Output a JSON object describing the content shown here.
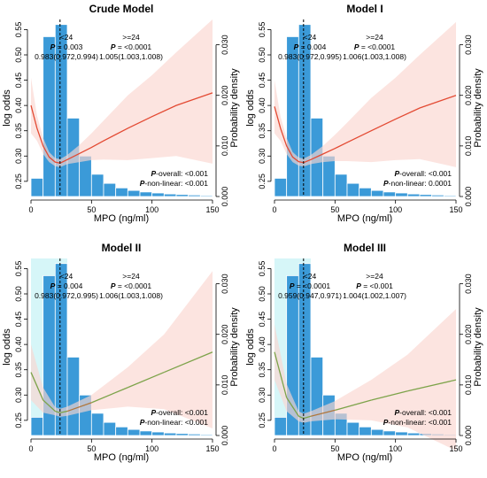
{
  "chart_data": [
    {
      "type": "bar",
      "title": "Crude Model",
      "xlabel": "MPO (ng/ml)",
      "ylabel": "log odds",
      "y2label": "Probability density",
      "xlim": [
        0,
        150
      ],
      "ylim": [
        0.22,
        0.57
      ],
      "y2lim": [
        0,
        0.035
      ],
      "xticks": [
        "0",
        "50",
        "100",
        "150"
      ],
      "yticks": [
        "0.25",
        "0.30",
        "0.35",
        "0.40",
        "0.45",
        "0.50",
        "0.55"
      ],
      "y2ticks": [
        "0.000",
        "0.010",
        "0.020",
        "0.030"
      ],
      "cutoff": 24,
      "shaded_band": false,
      "bins": [
        0,
        10,
        20,
        30,
        40,
        50,
        60,
        70,
        80,
        90,
        100,
        110,
        120,
        130,
        140,
        150
      ],
      "density": [
        0.0036,
        0.0316,
        0.034,
        0.0155,
        0.008,
        0.0044,
        0.0026,
        0.0017,
        0.0012,
        0.0009,
        0.0007,
        0.0005,
        0.0004,
        0.0003,
        0.0002
      ],
      "curve": {
        "x": [
          0,
          5,
          10,
          15,
          20,
          24,
          30,
          40,
          50,
          60,
          80,
          100,
          120,
          150
        ],
        "y": [
          0.4,
          0.355,
          0.32,
          0.298,
          0.288,
          0.286,
          0.293,
          0.305,
          0.317,
          0.33,
          0.355,
          0.378,
          0.4,
          0.425
        ],
        "colors": [
          "#e34a33"
        ]
      },
      "ci_upper": [
        0.455,
        0.38,
        0.336,
        0.308,
        0.296,
        0.294,
        0.302,
        0.322,
        0.345,
        0.37,
        0.42,
        0.46,
        0.505,
        0.57
      ],
      "ci_lower": [
        0.345,
        0.33,
        0.304,
        0.288,
        0.28,
        0.278,
        0.284,
        0.288,
        0.292,
        0.293,
        0.292,
        0.296,
        0.3,
        0.285
      ],
      "annot_left": {
        "group": "<24",
        "p_label": "P",
        "p_text": " = 0.003",
        "or": "0.983(0.972,0.994)"
      },
      "annot_right": {
        "group": ">=24",
        "p_label": "P",
        "p_text": " = <0.0001",
        "or": "1.005(1.003,1.008)"
      },
      "p_overall": {
        "label": "P",
        "text": "-overall: <0.001"
      },
      "p_nonlinear": {
        "label": "P",
        "text": "-non-linear: <0.001"
      }
    },
    {
      "type": "bar",
      "title": "Model I",
      "xlabel": "MPO (ng/ml)",
      "ylabel": "log odds",
      "y2label": "Probability density",
      "xlim": [
        0,
        150
      ],
      "ylim": [
        0.22,
        0.57
      ],
      "y2lim": [
        0,
        0.035
      ],
      "xticks": [
        "0",
        "50",
        "100",
        "150"
      ],
      "yticks": [
        "0.25",
        "0.30",
        "0.35",
        "0.40",
        "0.45",
        "0.50",
        "0.55"
      ],
      "y2ticks": [
        "0.000",
        "0.010",
        "0.020",
        "0.030"
      ],
      "cutoff": 24,
      "shaded_band": false,
      "bins": [
        0,
        10,
        20,
        30,
        40,
        50,
        60,
        70,
        80,
        90,
        100,
        110,
        120,
        130,
        140,
        150
      ],
      "density": [
        0.0036,
        0.0316,
        0.034,
        0.0155,
        0.008,
        0.0044,
        0.0026,
        0.0017,
        0.0012,
        0.0009,
        0.0007,
        0.0005,
        0.0004,
        0.0003,
        0.0002
      ],
      "curve": {
        "x": [
          0,
          5,
          10,
          15,
          20,
          24,
          30,
          40,
          50,
          60,
          80,
          100,
          120,
          150
        ],
        "y": [
          0.398,
          0.355,
          0.32,
          0.298,
          0.289,
          0.287,
          0.293,
          0.304,
          0.315,
          0.327,
          0.35,
          0.373,
          0.395,
          0.42
        ],
        "colors": [
          "#e34a33"
        ]
      },
      "ci_upper": [
        0.45,
        0.378,
        0.336,
        0.308,
        0.297,
        0.295,
        0.302,
        0.32,
        0.342,
        0.366,
        0.415,
        0.455,
        0.5,
        0.565
      ],
      "ci_lower": [
        0.345,
        0.33,
        0.304,
        0.288,
        0.281,
        0.279,
        0.284,
        0.288,
        0.29,
        0.29,
        0.288,
        0.292,
        0.294,
        0.278
      ],
      "annot_left": {
        "group": "<24",
        "p_label": "P",
        "p_text": " = 0.004",
        "or": "0.983(0.972,0.995)"
      },
      "annot_right": {
        "group": ">=24",
        "p_label": "P",
        "p_text": " = <0.0001",
        "or": "1.006(1.003,1.008)"
      },
      "p_overall": {
        "label": "P",
        "text": "-overall: <0.001"
      },
      "p_nonlinear": {
        "label": "P",
        "text": "-non-linear: 0.0001"
      }
    },
    {
      "type": "bar",
      "title": "Model II",
      "xlabel": "MPO (ng/ml)",
      "ylabel": "log odds",
      "y2label": "Probability density",
      "xlim": [
        0,
        150
      ],
      "ylim": [
        0.22,
        0.57
      ],
      "y2lim": [
        0,
        0.035
      ],
      "xticks": [
        "0",
        "50",
        "100",
        "150"
      ],
      "yticks": [
        "0.25",
        "0.30",
        "0.35",
        "0.40",
        "0.45",
        "0.50",
        "0.55"
      ],
      "y2ticks": [
        "0.000",
        "0.010",
        "0.020",
        "0.030"
      ],
      "cutoff": 24,
      "shaded_band": true,
      "bins": [
        0,
        10,
        20,
        30,
        40,
        50,
        60,
        70,
        80,
        90,
        100,
        110,
        120,
        130,
        140,
        150
      ],
      "density": [
        0.0036,
        0.0316,
        0.034,
        0.0155,
        0.008,
        0.0044,
        0.0026,
        0.0017,
        0.0012,
        0.0009,
        0.0007,
        0.0005,
        0.0004,
        0.0003,
        0.0002
      ],
      "curve": {
        "x": [
          0,
          10,
          20,
          24,
          30,
          50,
          80,
          110,
          150
        ],
        "y": [
          0.345,
          0.29,
          0.268,
          0.265,
          0.268,
          0.285,
          0.315,
          0.345,
          0.385
        ],
        "colors": [
          "#e34a33",
          "#7da34a"
        ]
      },
      "ci_upper": [
        0.4,
        0.315,
        0.276,
        0.273,
        0.277,
        0.3,
        0.355,
        0.42,
        0.545
      ],
      "ci_lower": [
        0.29,
        0.265,
        0.26,
        0.257,
        0.259,
        0.27,
        0.277,
        0.272,
        0.234
      ],
      "annot_left": {
        "group": "<24",
        "p_label": "P",
        "p_text": " = 0.004",
        "or": "0.983(0.972,0.995)"
      },
      "annot_right": {
        "group": ">=24",
        "p_label": "P",
        "p_text": " = <0.0001",
        "or": "1.006(1.003,1.008)"
      },
      "p_overall": {
        "label": "P",
        "text": "-overall: <0.001"
      },
      "p_nonlinear": {
        "label": "P",
        "text": "-non-linear: <0.001"
      }
    },
    {
      "type": "bar",
      "title": "Model III",
      "xlabel": "MPO (ng/ml)",
      "ylabel": "log odds",
      "y2label": "Probability density",
      "xlim": [
        0,
        150
      ],
      "ylim": [
        0.22,
        0.57
      ],
      "y2lim": [
        0,
        0.035
      ],
      "xticks": [
        "0",
        "50",
        "100",
        "150"
      ],
      "yticks": [
        "0.25",
        "0.30",
        "0.35",
        "0.40",
        "0.45",
        "0.50",
        "0.55"
      ],
      "y2ticks": [
        "0.000",
        "0.010",
        "0.020",
        "0.030"
      ],
      "cutoff": 24,
      "shaded_band": true,
      "bins": [
        0,
        10,
        20,
        30,
        40,
        50,
        60,
        70,
        80,
        90,
        100,
        110,
        120,
        130,
        140,
        150
      ],
      "density": [
        0.0036,
        0.0316,
        0.034,
        0.0155,
        0.008,
        0.0044,
        0.0026,
        0.0017,
        0.0012,
        0.0009,
        0.0007,
        0.0005,
        0.0004,
        0.0003,
        0.0002
      ],
      "curve": {
        "x": [
          0,
          10,
          20,
          24,
          30,
          50,
          80,
          110,
          150
        ],
        "y": [
          0.385,
          0.295,
          0.258,
          0.254,
          0.258,
          0.27,
          0.29,
          0.308,
          0.33
        ],
        "colors": [
          "#e34a33",
          "#7da34a"
        ]
      },
      "ci_upper": [
        0.44,
        0.322,
        0.268,
        0.263,
        0.268,
        0.288,
        0.33,
        0.38,
        0.47
      ],
      "ci_lower": [
        0.33,
        0.268,
        0.248,
        0.245,
        0.248,
        0.252,
        0.25,
        0.236,
        0.19
      ],
      "annot_left": {
        "group": "<24",
        "p_label": "P",
        "p_text": " = <0.0001",
        "or": "0.959(0.947,0.971)"
      },
      "annot_right": {
        "group": ">=24",
        "p_label": "P",
        "p_text": " = <0.001",
        "or": "1.004(1.002,1.007)"
      },
      "p_overall": {
        "label": "P",
        "text": "-overall: <0.001"
      },
      "p_nonlinear": {
        "label": "P",
        "text": "-non-linear: <0.001"
      }
    }
  ],
  "colors": {
    "bar_fill": "#3b9ad8",
    "bar_edge": "#ffffff",
    "ci_fill": "#fbd5d0",
    "band_fill": "#c8f3f5",
    "axis": "#000000"
  }
}
